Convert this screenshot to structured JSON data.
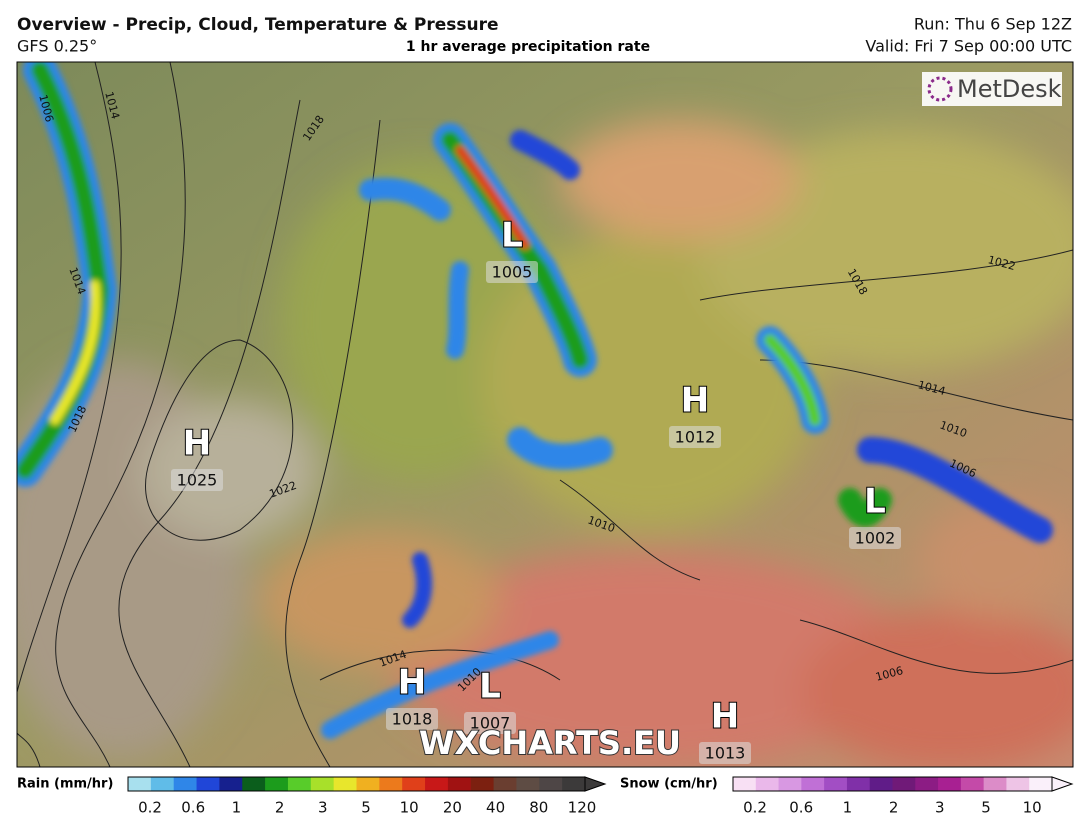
{
  "header": {
    "title": "Overview - Precip, Cloud, Temperature & Pressure",
    "model": "GFS 0.25°",
    "subtitle": "1 hr average precipitation rate",
    "run": "Run: Thu 6 Sep 12Z",
    "valid": "Valid: Fri 7 Sep 00:00 UTC"
  },
  "logo": "MetDesk",
  "watermark": "WXCHARTS.EU",
  "pressure_centres": [
    {
      "letter": "H",
      "value": 1025
    },
    {
      "letter": "L",
      "value": 1005
    },
    {
      "letter": "H",
      "value": 1012
    },
    {
      "letter": "L",
      "value": 1002
    },
    {
      "letter": "H",
      "value": 1018
    },
    {
      "letter": "L",
      "value": 1007
    },
    {
      "letter": "H",
      "value": 1013
    }
  ],
  "isobar_labels": [
    1006,
    1014,
    1018,
    1014,
    1018,
    1022,
    1018,
    1022,
    1014,
    1010,
    1006,
    1010,
    1014,
    1010,
    1006
  ],
  "rain_legend": {
    "title": "Rain (mm/hr)",
    "ticks": [
      0.2,
      0.6,
      1,
      2,
      3,
      5,
      10,
      20,
      40,
      80,
      120
    ],
    "colors": [
      "#a8e0ee",
      "#60bce8",
      "#2f86e8",
      "#2046d8",
      "#16208e",
      "#0b5e1c",
      "#1c9c1c",
      "#58cc2a",
      "#a8e02a",
      "#e8e62c",
      "#f0b020",
      "#ec7a1c",
      "#e0401a",
      "#c81818",
      "#a01212",
      "#7c2010",
      "#6a3e30",
      "#5e4c44",
      "#4e4646",
      "#3c3a3a"
    ]
  },
  "snow_legend": {
    "title": "Snow (cm/hr)",
    "ticks": [
      0.2,
      0.6,
      1,
      2,
      3,
      5,
      10
    ],
    "colors": [
      "#f8e0f4",
      "#eab8ea",
      "#d898e2",
      "#c070d6",
      "#a24ec4",
      "#8030a8",
      "#601c88",
      "#701a78",
      "#8c1c84",
      "#a82092",
      "#c44aa8",
      "#dc8cc8",
      "#eec4e6",
      "#faf0fa"
    ]
  }
}
